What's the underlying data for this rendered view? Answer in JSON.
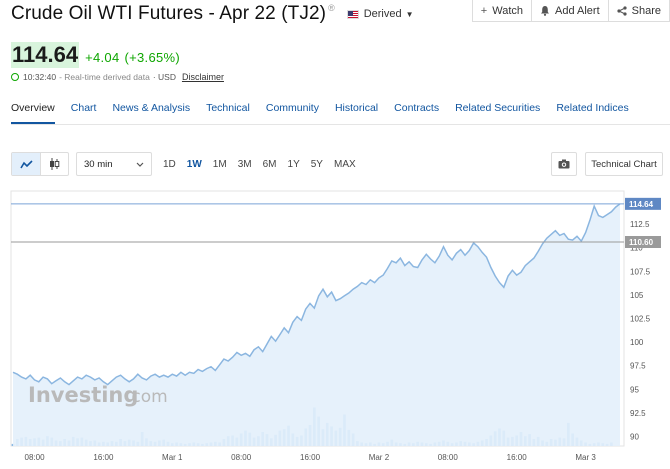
{
  "header": {
    "title": "Crude Oil WTI Futures - Apr 22 (TJ2)",
    "info_glyph": "®",
    "source_label": "Derived",
    "watch_label": "Watch",
    "add_alert_label": "Add Alert",
    "share_label": "Share"
  },
  "quote": {
    "price": "114.64",
    "change": "+4.04",
    "change_pct": "(+3.65%)",
    "time": "10:32:40",
    "data_note": "- Real-time derived data",
    "currency": "· USD",
    "disclaimer": "Disclaimer",
    "up_color": "#0ea600"
  },
  "tabs": [
    "Overview",
    "Chart",
    "News & Analysis",
    "Technical",
    "Community",
    "Historical",
    "Contracts",
    "Related Securities",
    "Related Indices"
  ],
  "toolbar": {
    "interval": "30 min",
    "ranges": [
      "1D",
      "1W",
      "1M",
      "3M",
      "6M",
      "1Y",
      "5Y",
      "MAX"
    ],
    "active_range": "1W",
    "technical_chart_label": "Technical Chart"
  },
  "chart_data": {
    "type": "area",
    "y_ticks": [
      "112.5",
      "110",
      "107.5",
      "105",
      "102.5",
      "100",
      "97.5",
      "95",
      "92.5",
      "90"
    ],
    "ylim": [
      89,
      116
    ],
    "x_ticks": [
      {
        "label": "08:00",
        "i": 5
      },
      {
        "label": "16:00",
        "i": 21
      },
      {
        "label": "Mar 1",
        "i": 37
      },
      {
        "label": "08:00",
        "i": 53
      },
      {
        "label": "16:00",
        "i": 69
      },
      {
        "label": "Mar 2",
        "i": 85
      },
      {
        "label": "08:00",
        "i": 101
      },
      {
        "label": "16:00",
        "i": 117
      },
      {
        "label": "Mar 3",
        "i": 133
      }
    ],
    "last_price_label": "114.64",
    "prev_close_label": "110.60",
    "last_price": 114.64,
    "prev_close": 110.6,
    "values": [
      96.8,
      96.6,
      96.3,
      96.1,
      96.5,
      96.0,
      95.8,
      96.3,
      96.1,
      95.6,
      95.9,
      96.2,
      95.8,
      95.5,
      95.9,
      96.3,
      96.1,
      96.5,
      96.3,
      96.0,
      96.2,
      95.8,
      95.5,
      95.9,
      96.3,
      96.5,
      96.1,
      95.8,
      96.1,
      96.6,
      96.2,
      96.0,
      96.4,
      96.6,
      96.3,
      96.5,
      96.3,
      96.6,
      96.4,
      96.8,
      96.5,
      96.8,
      96.7,
      97.1,
      96.9,
      97.2,
      97.4,
      97.0,
      97.6,
      98.2,
      98.0,
      98.4,
      98.9,
      98.6,
      98.8,
      98.5,
      99.2,
      99.5,
      99.0,
      99.8,
      100.6,
      100.1,
      100.8,
      101.5,
      101.0,
      102.1,
      102.7,
      102.3,
      103.5,
      104.1,
      103.6,
      104.9,
      105.6,
      104.8,
      105.3,
      104.4,
      104.6,
      104.9,
      105.2,
      105.6,
      105.9,
      106.3,
      106.1,
      106.6,
      106.3,
      106.8,
      107.1,
      107.8,
      108.6,
      108.4,
      108.9,
      108.1,
      108.5,
      108.0,
      107.9,
      108.7,
      109.3,
      108.8,
      108.4,
      109.1,
      110.1,
      109.2,
      108.7,
      109.4,
      109.8,
      109.2,
      109.7,
      110.5,
      110.1,
      109.5,
      109.0,
      107.9,
      107.0,
      106.3,
      105.8,
      107.0,
      107.6,
      107.1,
      107.4,
      108.1,
      108.5,
      108.9,
      109.6,
      110.4,
      111.0,
      111.4,
      111.8,
      111.3,
      111.5,
      110.9,
      110.8,
      111.2,
      110.7,
      111.6,
      112.9,
      114.4,
      113.4,
      113.2,
      113.5,
      113.8,
      114.3,
      114.64
    ],
    "volume_scale": [
      0.03,
      0.1,
      0.12,
      0.13,
      0.1,
      0.11,
      0.12,
      0.09,
      0.14,
      0.12,
      0.08,
      0.07,
      0.1,
      0.08,
      0.13,
      0.11,
      0.12,
      0.09,
      0.07,
      0.08,
      0.05,
      0.06,
      0.05,
      0.07,
      0.06,
      0.1,
      0.07,
      0.09,
      0.08,
      0.06,
      0.2,
      0.11,
      0.07,
      0.06,
      0.08,
      0.09,
      0.06,
      0.04,
      0.05,
      0.04,
      0.03,
      0.04,
      0.05,
      0.04,
      0.03,
      0.04,
      0.05,
      0.06,
      0.05,
      0.1,
      0.14,
      0.15,
      0.12,
      0.18,
      0.22,
      0.19,
      0.12,
      0.14,
      0.2,
      0.17,
      0.11,
      0.16,
      0.22,
      0.24,
      0.29,
      0.18,
      0.13,
      0.15,
      0.25,
      0.3,
      0.55,
      0.42,
      0.24,
      0.33,
      0.28,
      0.22,
      0.26,
      0.45,
      0.23,
      0.18,
      0.07,
      0.05,
      0.04,
      0.05,
      0.03,
      0.05,
      0.04,
      0.06,
      0.09,
      0.05,
      0.04,
      0.03,
      0.05,
      0.04,
      0.06,
      0.05,
      0.04,
      0.03,
      0.05,
      0.06,
      0.08,
      0.06,
      0.04,
      0.05,
      0.07,
      0.06,
      0.05,
      0.04,
      0.06,
      0.08,
      0.1,
      0.15,
      0.21,
      0.25,
      0.22,
      0.12,
      0.13,
      0.15,
      0.2,
      0.14,
      0.17,
      0.1,
      0.13,
      0.08,
      0.06,
      0.1,
      0.09,
      0.12,
      0.11,
      0.33,
      0.18,
      0.12,
      0.08,
      0.05,
      0.03,
      0.04,
      0.05,
      0.04,
      0.03,
      0.05
    ],
    "colors": {
      "line": "#8bb6e0",
      "fill": "#e3f0fb",
      "volume": "#7ab0e3",
      "label_bg": "#5f88c4"
    }
  },
  "watermark": {
    "brand_main": "Investing",
    "brand_suffix": ".com"
  }
}
